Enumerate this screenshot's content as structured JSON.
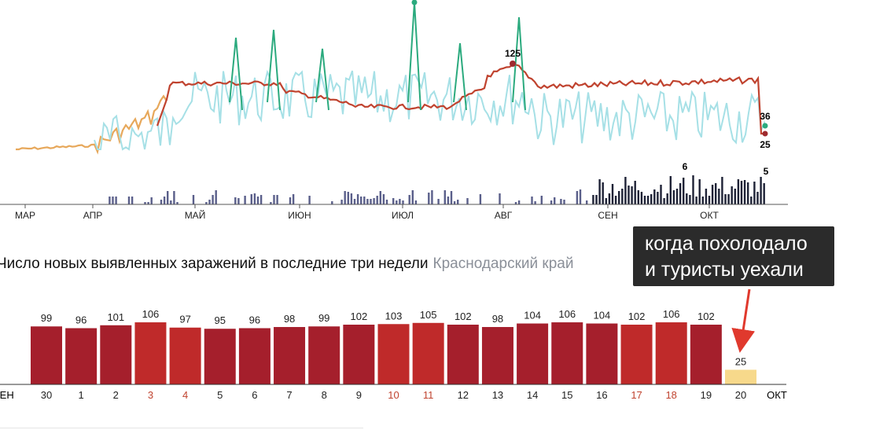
{
  "chart_data": [
    {
      "type": "line",
      "x_ticks": [
        "МАР",
        "АПР",
        "МАЙ",
        "ИЮН",
        "ИЮЛ",
        "АВГ",
        "СЕН",
        "ОКТ"
      ],
      "annotations": [
        {
          "label": "125",
          "series": "average",
          "note": "early August peak"
        },
        {
          "label": "36",
          "series": "daily",
          "note": "latest daily value"
        },
        {
          "label": "25",
          "series": "average",
          "note": "latest average value"
        },
        {
          "label": "6",
          "series": "deaths",
          "note": "peak in early October"
        },
        {
          "label": "5",
          "series": "deaths",
          "note": "latest value"
        }
      ],
      "colors": {
        "average": "#c0432f",
        "daily_light": "#a6e0e6",
        "daily_peak": "#2baa7e",
        "early": "#e7a85b",
        "deaths": "#5a5f8a",
        "deaths_recent": "#1e2236"
      }
    },
    {
      "type": "bar",
      "title": "Число новых выявленных заражений в последние три недели",
      "region": "Краснодарский край",
      "categories": [
        "30",
        "1",
        "2",
        "3",
        "4",
        "5",
        "6",
        "7",
        "8",
        "9",
        "10",
        "11",
        "12",
        "13",
        "14",
        "15",
        "16",
        "17",
        "18",
        "19",
        "20"
      ],
      "values": [
        99,
        96,
        101,
        106,
        97,
        95,
        96,
        98,
        99,
        102,
        103,
        105,
        102,
        98,
        104,
        106,
        104,
        102,
        106,
        102,
        25
      ],
      "weekend_indices": [
        3,
        4,
        10,
        11,
        17,
        18
      ],
      "edge_labels": {
        "left": "СЕН",
        "right": "ОКТ"
      },
      "colors": {
        "weekday": "#a51f2c",
        "weekend": "#bf2a2a",
        "last": "#f7d98b",
        "weekend_label": "#c0432f"
      },
      "ylim": [
        0,
        110
      ]
    }
  ],
  "callout": {
    "line1": "когда похолодало",
    "line2": "и туристы уехали",
    "arrow_color": "#e0392d"
  }
}
